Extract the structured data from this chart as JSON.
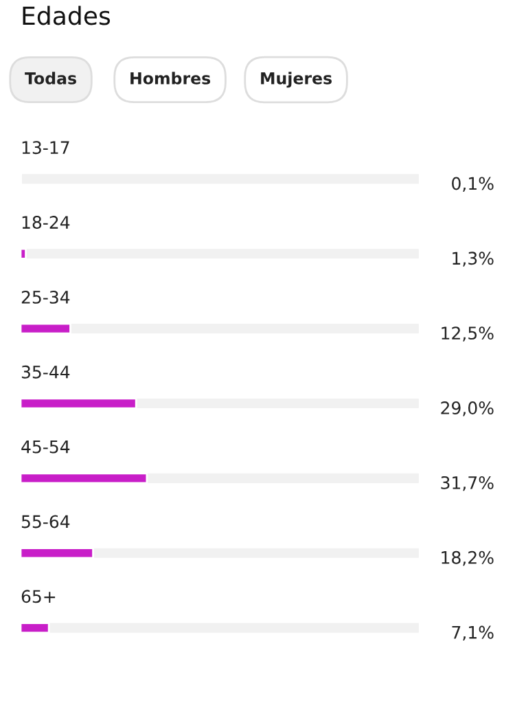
{
  "chart_data": {
    "type": "bar",
    "orientation": "horizontal",
    "title": "Edades",
    "annotations": [
      "Todas",
      "Hombres",
      "Mujeres"
    ],
    "categories": [
      "13-17",
      "18-24",
      "25-34",
      "35-44",
      "45-54",
      "55-64",
      "65+"
    ],
    "values": [
      0.1,
      1.3,
      12.5,
      29.0,
      31.7,
      18.2,
      7.1
    ],
    "value_labels": [
      "0,1%",
      "1,3%",
      "12,5%",
      "29,0%",
      "31,7%",
      "18,2%",
      "7,1%"
    ],
    "color": "#c81ec8",
    "xlim": [
      0,
      100
    ],
    "tick_labels": false
  }
}
